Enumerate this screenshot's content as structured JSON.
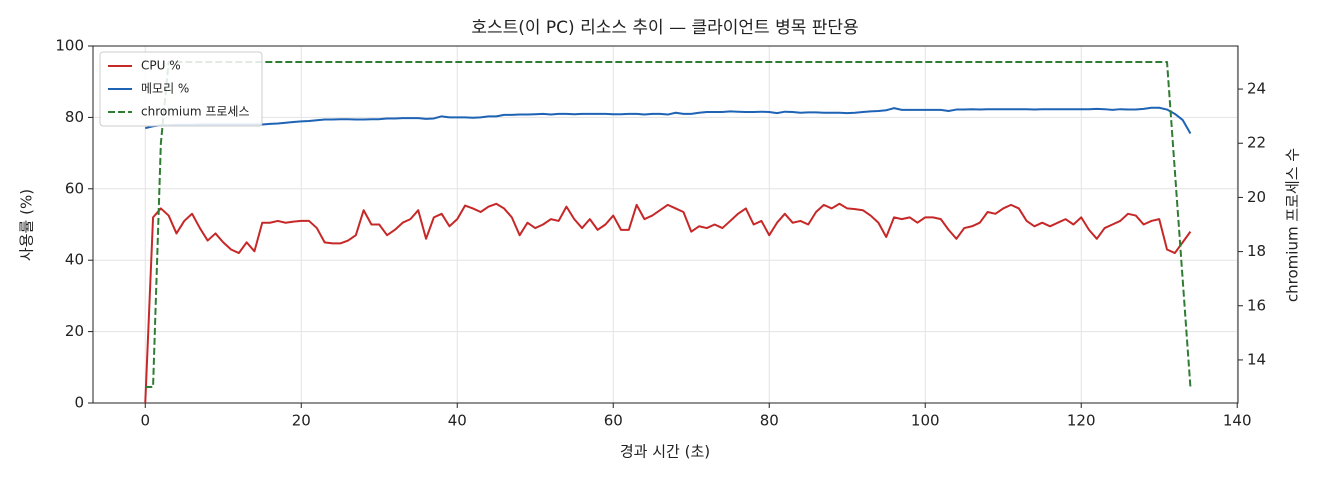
{
  "chart_data": {
    "type": "line",
    "title": "호스트(이 PC) 리소스 추이 — 클라이언트 병목 판단용",
    "xlabel": "경과 시간 (초)",
    "ylabel": "사용률 (%)",
    "y2label": "chromium 프로세스 수",
    "x": [
      0,
      1,
      2,
      3,
      4,
      5,
      6,
      7,
      8,
      9,
      10,
      11,
      12,
      13,
      14,
      15,
      16,
      17,
      18,
      19,
      20,
      21,
      22,
      23,
      24,
      25,
      26,
      27,
      28,
      29,
      30,
      31,
      32,
      33,
      34,
      35,
      36,
      37,
      38,
      39,
      40,
      41,
      42,
      43,
      44,
      45,
      46,
      47,
      48,
      49,
      50,
      51,
      52,
      53,
      54,
      55,
      56,
      57,
      58,
      59,
      60,
      61,
      62,
      63,
      64,
      65,
      66,
      67,
      68,
      69,
      70,
      71,
      72,
      73,
      74,
      75,
      76,
      77,
      78,
      79,
      80,
      81,
      82,
      83,
      84,
      85,
      86,
      87,
      88,
      89,
      90,
      91,
      92,
      93,
      94,
      95,
      96,
      97,
      98,
      99,
      100,
      101,
      102,
      103,
      104,
      105,
      106,
      107,
      108,
      109,
      110,
      111,
      112,
      113,
      114,
      115,
      116,
      117,
      118,
      119,
      120,
      121,
      122,
      123,
      124,
      125,
      126,
      127,
      128,
      129,
      130,
      131,
      132,
      133,
      134
    ],
    "series": [
      {
        "name": "CPU %",
        "color": "#c62828",
        "axis": "y",
        "dash": false,
        "values": [
          0,
          52,
          54.5,
          52.5,
          47.5,
          51,
          53,
          49,
          45.5,
          47.5,
          45,
          43,
          42,
          45,
          42.5,
          50.5,
          50.5,
          51,
          50.5,
          50.8,
          51,
          51,
          49,
          45,
          44.7,
          44.7,
          45.5,
          47,
          54,
          50,
          50,
          47,
          48.5,
          50.5,
          51.5,
          54,
          46,
          52,
          53,
          49.5,
          51.5,
          55.3,
          54.5,
          53.5,
          55,
          55.8,
          54.5,
          52,
          47,
          50.5,
          49,
          50,
          51.5,
          51,
          55,
          51.5,
          49,
          51.5,
          48.5,
          50,
          52.5,
          48.5,
          48.5,
          55.5,
          51.5,
          52.5,
          54,
          55.5,
          54.5,
          53.5,
          48,
          49.5,
          49,
          50,
          49,
          51,
          53,
          54.5,
          50,
          51,
          47,
          50.5,
          53,
          50.5,
          51,
          50,
          53.5,
          55.5,
          54.5,
          55.8,
          54.5,
          54.3,
          54,
          52.5,
          50.5,
          46.5,
          52,
          51.5,
          52,
          50.5,
          52,
          52,
          51.5,
          48.5,
          46,
          49,
          49.5,
          50.5,
          53.5,
          53,
          54.5,
          55.5,
          54.5,
          51,
          49.5,
          50.5,
          49.5,
          50.5,
          51.5,
          50,
          52,
          48.5,
          46,
          49,
          50,
          51,
          53,
          52.5,
          50,
          51,
          51.5,
          43,
          42,
          45,
          48
        ]
      },
      {
        "name": "메모리 %",
        "color": "#1f63b5",
        "axis": "y",
        "dash": false,
        "values": [
          77,
          77.5,
          77.8,
          77.8,
          77.9,
          77.9,
          77.9,
          78,
          78,
          78,
          78,
          78,
          78,
          78,
          78,
          78,
          78.2,
          78.3,
          78.5,
          78.7,
          78.9,
          79,
          79.2,
          79.4,
          79.4,
          79.5,
          79.5,
          79.4,
          79.4,
          79.5,
          79.5,
          79.7,
          79.7,
          79.8,
          79.8,
          79.8,
          79.6,
          79.7,
          80.3,
          80,
          80,
          80,
          79.9,
          80,
          80.3,
          80.3,
          80.7,
          80.7,
          80.8,
          80.8,
          80.9,
          81,
          80.8,
          81,
          81,
          80.9,
          81,
          81,
          81,
          81,
          80.9,
          80.9,
          81,
          81,
          80.8,
          81,
          81,
          80.8,
          81.3,
          81,
          81,
          81.3,
          81.5,
          81.5,
          81.5,
          81.7,
          81.6,
          81.5,
          81.5,
          81.6,
          81.5,
          81.2,
          81.6,
          81.5,
          81.3,
          81.4,
          81.4,
          81.3,
          81.3,
          81.3,
          81.2,
          81.3,
          81.5,
          81.7,
          81.8,
          82,
          82.6,
          82.1,
          82.1,
          82.1,
          82.1,
          82.1,
          82.1,
          81.8,
          82.2,
          82.2,
          82.3,
          82.2,
          82.3,
          82.3,
          82.3,
          82.3,
          82.3,
          82.3,
          82.2,
          82.3,
          82.3,
          82.3,
          82.3,
          82.3,
          82.3,
          82.3,
          82.4,
          82.3,
          82.1,
          82.3,
          82.2,
          82.2,
          82.4,
          82.7,
          82.7,
          82.2,
          81,
          79.3,
          75.5
        ]
      },
      {
        "name": "chromium 프로세스",
        "color": "#2e7d32",
        "axis": "y2",
        "dash": true,
        "values": [
          13,
          13,
          22,
          25,
          25,
          25,
          25,
          25,
          25,
          25,
          25,
          25,
          25,
          25,
          25,
          25,
          25,
          25,
          25,
          25,
          25,
          25,
          25,
          25,
          25,
          25,
          25,
          25,
          25,
          25,
          25,
          25,
          25,
          25,
          25,
          25,
          25,
          25,
          25,
          25,
          25,
          25,
          25,
          25,
          25,
          25,
          25,
          25,
          25,
          25,
          25,
          25,
          25,
          25,
          25,
          25,
          25,
          25,
          25,
          25,
          25,
          25,
          25,
          25,
          25,
          25,
          25,
          25,
          25,
          25,
          25,
          25,
          25,
          25,
          25,
          25,
          25,
          25,
          25,
          25,
          25,
          25,
          25,
          25,
          25,
          25,
          25,
          25,
          25,
          25,
          25,
          25,
          25,
          25,
          25,
          25,
          25,
          25,
          25,
          25,
          25,
          25,
          25,
          25,
          25,
          25,
          25,
          25,
          25,
          25,
          25,
          25,
          25,
          25,
          25,
          25,
          25,
          25,
          25,
          25,
          25,
          25,
          25,
          25,
          25,
          25,
          25,
          25,
          25,
          25,
          25,
          25,
          21,
          17,
          13
        ]
      }
    ],
    "xlim": [
      -6.7,
      140.1
    ],
    "xticks": [
      0,
      20,
      40,
      60,
      80,
      100,
      120,
      140
    ],
    "ylim": [
      0,
      100
    ],
    "yticks": [
      0,
      20,
      40,
      60,
      80,
      100
    ],
    "y2lim": [
      12.41,
      25.59
    ],
    "y2ticks": [
      14,
      16,
      18,
      20,
      22,
      24
    ],
    "grid": true,
    "legend": "upper-left"
  }
}
